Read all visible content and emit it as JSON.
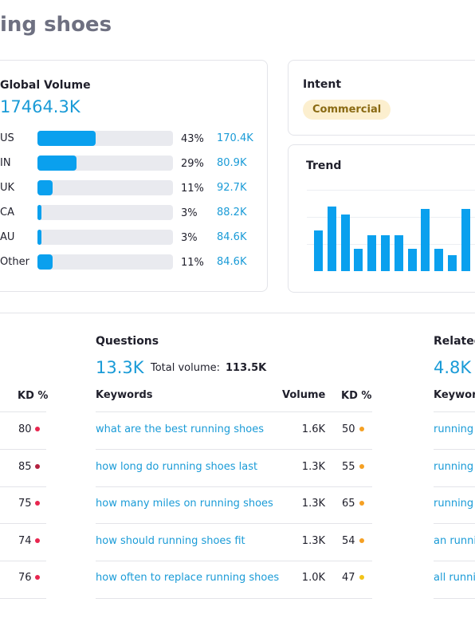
{
  "header": {
    "title": "ing shoes"
  },
  "global_volume": {
    "title": "Global Volume",
    "total": "17464.3K",
    "rows": [
      {
        "country": "US",
        "share": {
          "value": 43,
          "label": "43%"
        },
        "volume": "170.4K"
      },
      {
        "country": "IN",
        "share": {
          "value": 29,
          "label": "29%"
        },
        "volume": "80.9K"
      },
      {
        "country": "UK",
        "share": {
          "value": 11,
          "label": "11%"
        },
        "volume": "92.7K"
      },
      {
        "country": "CA",
        "share": {
          "value": 3,
          "label": "3%"
        },
        "volume": "88.2K"
      },
      {
        "country": "AU",
        "share": {
          "value": 3,
          "label": "3%"
        },
        "volume": "84.6K"
      },
      {
        "country": "Other",
        "share": {
          "value": 11,
          "label": "11%"
        },
        "volume": "84.6K"
      }
    ]
  },
  "intent": {
    "title": "Intent",
    "badge": "Commercial"
  },
  "trend": {
    "title": "Trend",
    "color": "#0aa0ee",
    "values": [
      51,
      81,
      71,
      28,
      45,
      45,
      45,
      28,
      78,
      28,
      20,
      78
    ]
  },
  "keywords_left": {
    "header": "KD %",
    "rows": [
      {
        "kd": "80",
        "color": "#e8264f"
      },
      {
        "kd": "85",
        "color": "#b3213f"
      },
      {
        "kd": "75",
        "color": "#e8264f"
      },
      {
        "kd": "74",
        "color": "#e8264f"
      },
      {
        "kd": "76",
        "color": "#e8264f"
      }
    ]
  },
  "questions": {
    "title": "Questions",
    "count": "13.3K",
    "total_label": "Total volume:",
    "total": "113.5K",
    "columns": [
      "Keywords",
      "Volume",
      "KD %"
    ],
    "rows": [
      {
        "keyword": "what are the best running shoes",
        "volume": "1.6K",
        "kd": "50",
        "color": "#f5a023"
      },
      {
        "keyword": "how long do running shoes last",
        "volume": "1.3K",
        "kd": "55",
        "color": "#f5a023"
      },
      {
        "keyword": "how many miles on running shoes",
        "volume": "1.3K",
        "kd": "65",
        "color": "#f5a023"
      },
      {
        "keyword": "how should running shoes fit",
        "volume": "1.3K",
        "kd": "54",
        "color": "#f5a023"
      },
      {
        "keyword": "how often to replace running shoes",
        "volume": "1.0K",
        "kd": "47",
        "color": "#f2c318"
      }
    ]
  },
  "related": {
    "title": "Related",
    "count": "4.8K",
    "columns": [
      "Keywor"
    ],
    "rows": [
      "running",
      "running",
      "running",
      "an runni",
      "all runni"
    ]
  }
}
